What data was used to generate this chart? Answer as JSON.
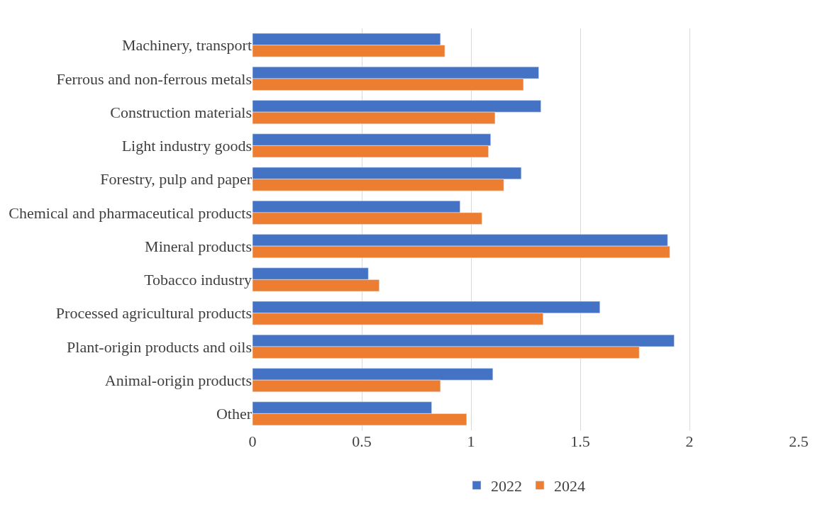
{
  "chart_data": {
    "type": "bar",
    "orientation": "horizontal",
    "categories": [
      "Machinery, transport",
      "Ferrous and non-ferrous metals",
      "Construction materials",
      "Light industry goods",
      "Forestry, pulp and paper",
      "Chemical and pharmaceutical products",
      "Mineral products",
      "Tobacco industry",
      "Processed agricultural products",
      "Plant-origin products and oils",
      "Animal-origin products",
      "Other"
    ],
    "series": [
      {
        "name": "2022",
        "color": "#4472c4",
        "values": [
          0.86,
          1.31,
          1.32,
          1.09,
          1.23,
          0.95,
          1.9,
          0.53,
          1.59,
          1.93,
          1.1,
          0.82
        ]
      },
      {
        "name": "2024",
        "color": "#ed7d31",
        "values": [
          0.88,
          1.24,
          1.11,
          1.08,
          1.15,
          1.05,
          1.91,
          0.58,
          1.33,
          1.77,
          0.86,
          0.98
        ]
      }
    ],
    "xlim": [
      0,
      2.5
    ],
    "xticks": [
      0,
      0.5,
      1,
      1.5,
      2,
      2.5
    ],
    "grid": "x",
    "legend": "bottom"
  }
}
